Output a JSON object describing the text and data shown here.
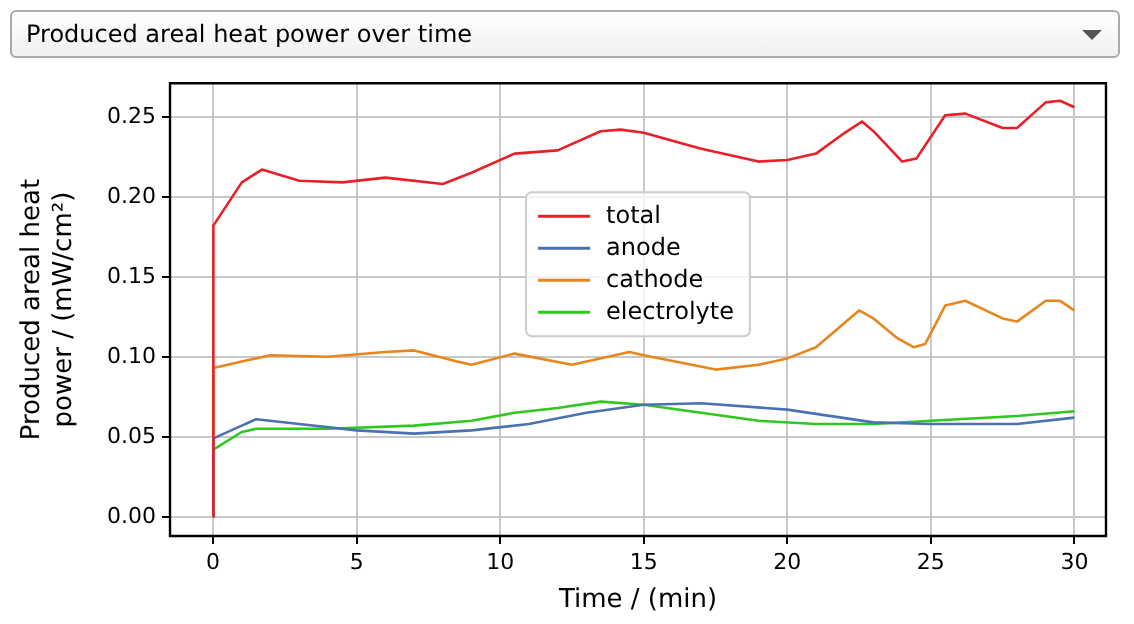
{
  "chart_data": {
    "type": "line",
    "title": "Produced areal heat power over time",
    "xlabel": "Time / (min)",
    "ylabel": "Produced areal heat power / (mW/cm²)",
    "xlim": [
      -1.5,
      31.1
    ],
    "xticks": [
      0,
      5,
      10,
      15,
      20,
      25,
      30
    ],
    "ylim": [
      -0.012,
      0.271
    ],
    "yticks": [
      {
        "value": 0,
        "label": "0.00"
      },
      {
        "value": 0.05,
        "label": "0.05"
      },
      {
        "value": 0.1,
        "label": "0.10"
      },
      {
        "value": 0.15,
        "label": "0.15"
      },
      {
        "value": 0.2,
        "label": "0.20"
      },
      {
        "value": 0.25,
        "label": "0.25"
      }
    ],
    "grid": true,
    "legend": "center",
    "series": [
      {
        "name": "total",
        "color": "#e8202a",
        "x": [
          0,
          0.01,
          1,
          1.7,
          3,
          4.5,
          6,
          8,
          9,
          10.5,
          12,
          13.5,
          14.2,
          15,
          17,
          19,
          20,
          21,
          22,
          22.6,
          23,
          24,
          24.5,
          25.5,
          26.2,
          27.5,
          28,
          29,
          29.5,
          30
        ],
        "values": [
          0,
          0.182,
          0.209,
          0.217,
          0.21,
          0.209,
          0.212,
          0.208,
          0.215,
          0.227,
          0.229,
          0.241,
          0.242,
          0.24,
          0.23,
          0.222,
          0.223,
          0.227,
          0.24,
          0.247,
          0.241,
          0.222,
          0.224,
          0.251,
          0.252,
          0.243,
          0.243,
          0.259,
          0.26,
          0.256
        ]
      },
      {
        "name": "anode",
        "color": "#4a72b0",
        "x": [
          0,
          0.01,
          1,
          1.5,
          3,
          5,
          7,
          9,
          11,
          13,
          15,
          17,
          20,
          23,
          25,
          28,
          30
        ],
        "values": [
          0,
          0.049,
          0.057,
          0.061,
          0.058,
          0.054,
          0.052,
          0.054,
          0.058,
          0.065,
          0.07,
          0.071,
          0.067,
          0.059,
          0.058,
          0.058,
          0.062
        ]
      },
      {
        "name": "cathode",
        "color": "#e8861e",
        "x": [
          0,
          0.01,
          1,
          2,
          4,
          6,
          7,
          8.5,
          9,
          10.5,
          12.5,
          14.5,
          15,
          17.5,
          19,
          20,
          21,
          22.5,
          23,
          23.8,
          24.4,
          24.8,
          25.5,
          26.2,
          27.5,
          28,
          29,
          29.5,
          30
        ],
        "values": [
          0,
          0.093,
          0.097,
          0.101,
          0.1,
          0.103,
          0.104,
          0.097,
          0.095,
          0.102,
          0.095,
          0.103,
          0.101,
          0.092,
          0.095,
          0.099,
          0.106,
          0.129,
          0.124,
          0.112,
          0.106,
          0.108,
          0.132,
          0.135,
          0.124,
          0.122,
          0.135,
          0.135,
          0.129
        ]
      },
      {
        "name": "electrolyte",
        "color": "#2ec81e",
        "x": [
          0,
          0.01,
          1,
          1.5,
          4,
          7,
          9,
          10.5,
          12,
          13.5,
          15,
          17,
          19,
          21,
          23,
          25,
          28,
          30
        ],
        "values": [
          0,
          0.042,
          0.053,
          0.055,
          0.055,
          0.057,
          0.06,
          0.065,
          0.068,
          0.072,
          0.07,
          0.065,
          0.06,
          0.058,
          0.058,
          0.06,
          0.063,
          0.066
        ]
      }
    ]
  }
}
